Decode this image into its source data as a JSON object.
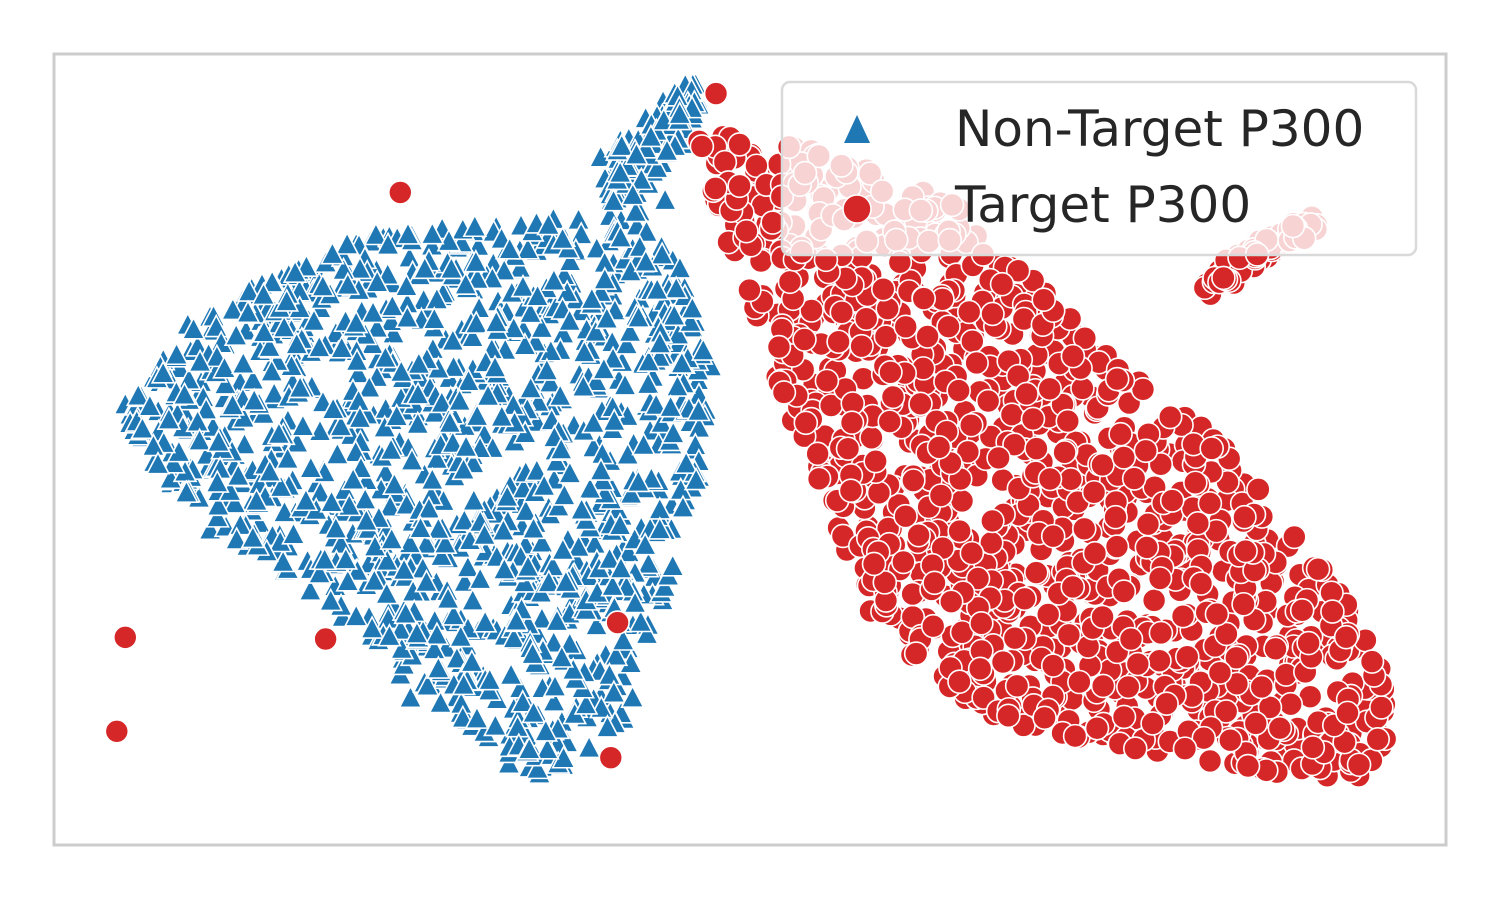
{
  "chart_data": {
    "type": "scatter",
    "title": "",
    "xlabel": "",
    "ylabel": "",
    "xlim": [
      -38,
      44
    ],
    "ylim": [
      -25,
      23
    ],
    "grid": false,
    "ticks": false,
    "legend_position": "top-right",
    "series": [
      {
        "name": "Non-Target P300",
        "marker": "triangle",
        "color": "#1f77b4",
        "approx_count": 1400,
        "cluster_centroid": [
          -19,
          0
        ],
        "points": [
          [
            -33.8,
            1.7
          ],
          [
            -32.8,
            -0.3
          ],
          [
            -32.1,
            -1.8
          ],
          [
            -31.1,
            -3.1
          ],
          [
            -30.6,
            3.9
          ],
          [
            -29.6,
            -3.5
          ],
          [
            -28.8,
            -5.9
          ],
          [
            -27.7,
            -4.2
          ],
          [
            -26.9,
            8.0
          ],
          [
            -26.8,
            -3.0
          ],
          [
            -25.9,
            -5.5
          ],
          [
            -25.2,
            6.5
          ],
          [
            -24.4,
            -8.4
          ],
          [
            -23.3,
            9.7
          ],
          [
            -22.9,
            -9.6
          ],
          [
            -22.4,
            9.5
          ],
          [
            -21.0,
            -11.2
          ],
          [
            -20.2,
            11.4
          ],
          [
            -18.6,
            11.8
          ],
          [
            -17.6,
            -14.7
          ],
          [
            -17.0,
            -16.1
          ],
          [
            -15.1,
            12.2
          ],
          [
            -14.2,
            11.2
          ],
          [
            -14.0,
            -16.5
          ],
          [
            -12.4,
            -18.5
          ],
          [
            -11.2,
            -20.1
          ],
          [
            -10.0,
            -19.2
          ],
          [
            -9.6,
            12.5
          ],
          [
            -9.4,
            -20.7
          ],
          [
            -8.5,
            -20.3
          ],
          [
            -7.9,
            -18.6
          ],
          [
            -7.1,
            12.9
          ],
          [
            -6.6,
            -17.3
          ],
          [
            -5.8,
            -16.0
          ],
          [
            -5.5,
            -13.5
          ],
          [
            -4.2,
            -13.1
          ],
          [
            -3.9,
            -11.7
          ],
          [
            -2.7,
            -8.3
          ],
          [
            -2.5,
            -6.0
          ],
          [
            -1.6,
            -4.4
          ],
          [
            -1.4,
            4.6
          ],
          [
            -1.0,
            1.9
          ],
          [
            0.0,
            -2.7
          ],
          [
            0.7,
            4.0
          ],
          [
            -3.5,
            13.4
          ],
          [
            -2.0,
            14.1
          ],
          [
            -5.8,
            16.7
          ],
          [
            -4.1,
            17.8
          ],
          [
            -2.3,
            18.8
          ],
          [
            -1.4,
            20.1
          ],
          [
            -0.2,
            21.1
          ],
          [
            -1.3,
            19.7
          ],
          [
            -0.8,
            17.5
          ],
          [
            -3.4,
            15.6
          ],
          [
            -12.0,
            5.0
          ],
          [
            -8.0,
            -2.0
          ],
          [
            -20.0,
            0.0
          ],
          [
            -15.0,
            -6.0
          ],
          [
            -10.0,
            -10.0
          ],
          [
            -25.0,
            2.0
          ],
          [
            -18.0,
            6.0
          ],
          [
            -6.0,
            -14.0
          ],
          [
            -16.0,
            -13.0
          ],
          [
            -4.5,
            1.2
          ],
          [
            -9.3,
            7.6
          ],
          [
            -11.6,
            -4.9
          ],
          [
            -22.1,
            -2.4
          ],
          [
            -14.7,
            3.3
          ],
          [
            -7.2,
            -7.8
          ],
          [
            -19.4,
            -8.9
          ],
          [
            -26.1,
            1.1
          ],
          [
            -3.6,
            -2.8
          ],
          [
            -12.9,
            9.8
          ],
          [
            -8.8,
            -15.4
          ],
          [
            -17.3,
            -3.7
          ],
          [
            -5.1,
            8.3
          ],
          [
            -23.8,
            4.6
          ],
          [
            -10.7,
            -12.6
          ]
        ]
      },
      {
        "name": "Target P300",
        "marker": "circle",
        "color": "#d62728",
        "approx_count": 1400,
        "cluster_centroid": [
          19,
          -3
        ],
        "points": [
          [
            1.0,
            20.6
          ],
          [
            0.0,
            17.7
          ],
          [
            5.6,
            17.3
          ],
          [
            4.4,
            12.4
          ],
          [
            4.6,
            7.2
          ],
          [
            4.6,
            3.4
          ],
          [
            7.5,
            -1.6
          ],
          [
            8.7,
            -4.1
          ],
          [
            9.9,
            -9.2
          ],
          [
            10.1,
            -10.8
          ],
          [
            12.9,
            -13.1
          ],
          [
            15.7,
            -16.1
          ],
          [
            18.3,
            -17.1
          ],
          [
            21.5,
            -17.5
          ],
          [
            23.8,
            -18.3
          ],
          [
            27.0,
            -19.3
          ],
          [
            30.1,
            -19.9
          ],
          [
            34.1,
            -19.2
          ],
          [
            37.0,
            -20.8
          ],
          [
            39.6,
            -19.9
          ],
          [
            40.3,
            -16.9
          ],
          [
            40.1,
            -14.3
          ],
          [
            37.7,
            -11.0
          ],
          [
            35.4,
            -8.6
          ],
          [
            33.5,
            -6.5
          ],
          [
            32.1,
            -3.1
          ],
          [
            28.4,
            -3.6
          ],
          [
            25.5,
            -1.8
          ],
          [
            23.1,
            2.2
          ],
          [
            21.9,
            6.2
          ],
          [
            19.5,
            8.6
          ],
          [
            16.2,
            10.3
          ],
          [
            15.1,
            11.9
          ],
          [
            13.2,
            14.6
          ],
          [
            9.5,
            14.7
          ],
          [
            7.0,
            13.4
          ],
          [
            30.6,
            9.8
          ],
          [
            32.6,
            11.1
          ],
          [
            33.7,
            11.9
          ],
          [
            35.0,
            12.7
          ],
          [
            36.1,
            13.1
          ],
          [
            31.5,
            9.1
          ],
          [
            12.0,
            4.0
          ],
          [
            16.0,
            0.0
          ],
          [
            20.0,
            -6.0
          ],
          [
            24.0,
            -10.0
          ],
          [
            28.0,
            -12.0
          ],
          [
            14.0,
            -4.0
          ],
          [
            18.0,
            2.0
          ],
          [
            26.0,
            -8.0
          ],
          [
            32.0,
            -14.0
          ],
          [
            36.0,
            -16.0
          ],
          [
            10.0,
            8.0
          ],
          [
            22.0,
            -2.0
          ],
          [
            -33.8,
            -12.4
          ],
          [
            -34.3,
            -18.1
          ],
          [
            -22.0,
            -12.5
          ],
          [
            -17.6,
            14.6
          ],
          [
            -4.8,
            -11.5
          ],
          [
            -5.2,
            -19.7
          ],
          [
            11.5,
            -6.8
          ],
          [
            17.3,
            -11.9
          ],
          [
            25.7,
            -14.6
          ],
          [
            29.4,
            -16.8
          ],
          [
            13.8,
            7.5
          ],
          [
            8.6,
            1.9
          ],
          [
            21.2,
            -9.7
          ],
          [
            34.8,
            -12.3
          ],
          [
            19.8,
            -13.8
          ],
          [
            27.3,
            -6.4
          ],
          [
            15.6,
            5.1
          ],
          [
            38.4,
            -18.2
          ]
        ]
      }
    ]
  }
}
